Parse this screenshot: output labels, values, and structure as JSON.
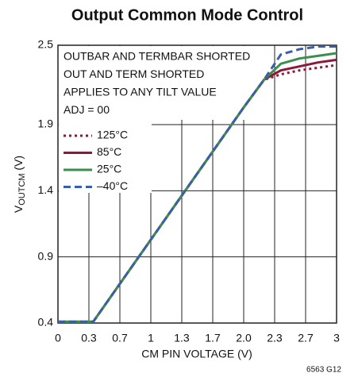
{
  "chart_data": {
    "type": "line",
    "title": "Output Common Mode Control",
    "x_label": "CM PIN VOLTAGE (V)",
    "y_label": "V",
    "y_label_sub": "OUTCM",
    "y_label_unit": " (V)",
    "annotations": [
      "OUTBAR AND TERMBAR SHORTED",
      "OUT AND TERM SHORTED",
      "APPLIES TO ANY TILT VALUE",
      "ADJ = 00"
    ],
    "figure_id": "6563 G12",
    "x": [
      0,
      0.38,
      2.0,
      2.22,
      2.4,
      2.6,
      2.8,
      3.0
    ],
    "series": [
      {
        "name": "125°C",
        "color": "#8b1a3a",
        "dash": "dotted",
        "values": [
          0.41,
          0.41,
          2.03,
          2.24,
          2.28,
          2.31,
          2.33,
          2.35
        ]
      },
      {
        "name": "85°C",
        "color": "#8b1a3a",
        "dash": "solid",
        "values": [
          0.41,
          0.41,
          2.03,
          2.24,
          2.31,
          2.34,
          2.37,
          2.39
        ]
      },
      {
        "name": "25°C",
        "color": "#3a8f4a",
        "dash": "solid",
        "values": [
          0.41,
          0.41,
          2.03,
          2.24,
          2.36,
          2.4,
          2.42,
          2.44
        ]
      },
      {
        "name": "–40°C",
        "color": "#3a5ea8",
        "dash": "dashed",
        "values": [
          0.41,
          0.41,
          2.03,
          2.24,
          2.43,
          2.47,
          2.49,
          2.49
        ]
      }
    ],
    "xlim": [
      0,
      3
    ],
    "xticks": [
      0,
      {
        "value": 0.3333,
        "label": "0.3"
      },
      {
        "value": 0.6667,
        "label": "0.7"
      },
      1,
      {
        "value": 1.3333,
        "label": "1.3"
      },
      {
        "value": 1.6667,
        "label": "1.7"
      },
      {
        "value": 2,
        "label": "2.0"
      },
      {
        "value": 2.3333,
        "label": "2.3"
      },
      {
        "value": 2.6667,
        "label": "2.7"
      },
      3
    ],
    "ylim": [
      0.4,
      2.5
    ],
    "yticks": [
      0.4,
      0.9,
      1.4,
      1.9,
      2.5
    ],
    "grid": true
  }
}
